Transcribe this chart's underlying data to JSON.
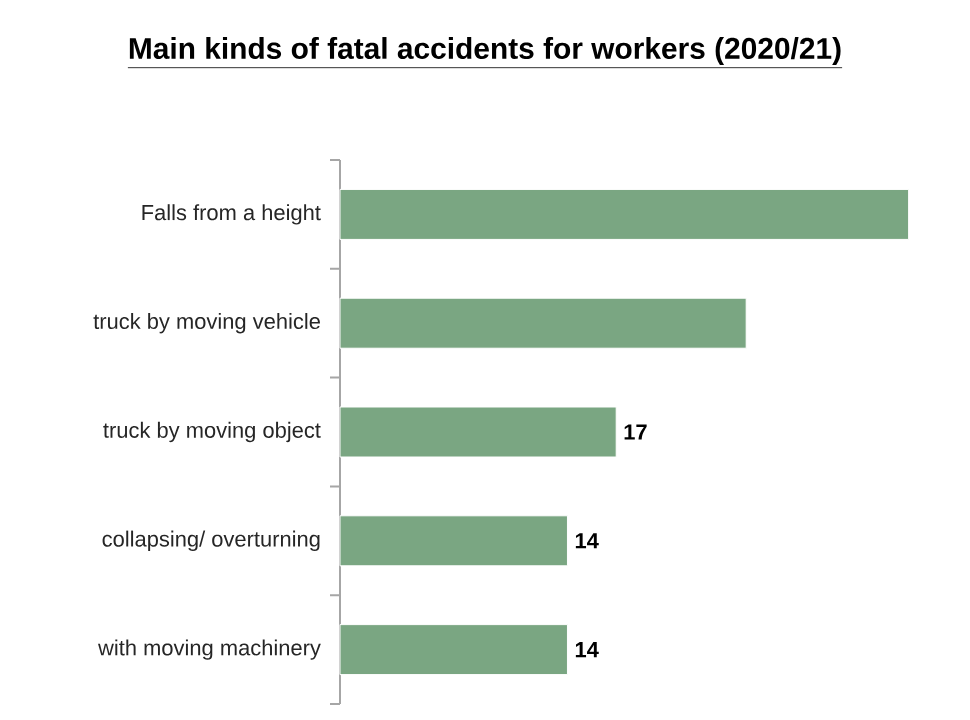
{
  "chart_data": {
    "type": "bar",
    "orientation": "horizontal",
    "title": "Main kinds of fatal accidents for workers (2020/21)",
    "categories": [
      "Falls from a height",
      "truck by moving vehicle",
      "truck by moving object",
      "collapsing/ overturning",
      "with moving machinery"
    ],
    "values": [
      35,
      25,
      17,
      14,
      14
    ],
    "value_labels": [
      null,
      null,
      "17",
      "14",
      "14"
    ],
    "color": "#7aa682"
  }
}
